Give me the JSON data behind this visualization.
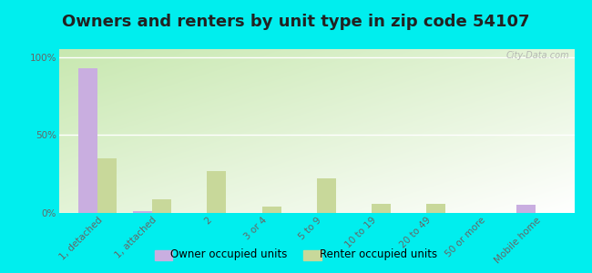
{
  "title": "Owners and renters by unit type in zip code 54107",
  "categories": [
    "1, detached",
    "1, attached",
    "2",
    "3 or 4",
    "5 to 9",
    "10 to 19",
    "20 to 49",
    "50 or more",
    "Mobile home"
  ],
  "owner_values": [
    93,
    1,
    0,
    0,
    0,
    0,
    0,
    0,
    5
  ],
  "renter_values": [
    35,
    9,
    27,
    4,
    22,
    6,
    6,
    0,
    0
  ],
  "owner_color": "#c9aee0",
  "renter_color": "#c8d89a",
  "grad_top_left": "#c8e8b0",
  "grad_bottom_right": "#f8fff5",
  "outer_bg": "#00eeee",
  "ylabel_ticks": [
    "0%",
    "50%",
    "100%"
  ],
  "ytick_vals": [
    0,
    50,
    100
  ],
  "ylim": [
    0,
    105
  ],
  "bar_width": 0.35,
  "legend_owner": "Owner occupied units",
  "legend_renter": "Renter occupied units",
  "title_fontsize": 13,
  "tick_fontsize": 7.5,
  "watermark": "City-Data.com"
}
